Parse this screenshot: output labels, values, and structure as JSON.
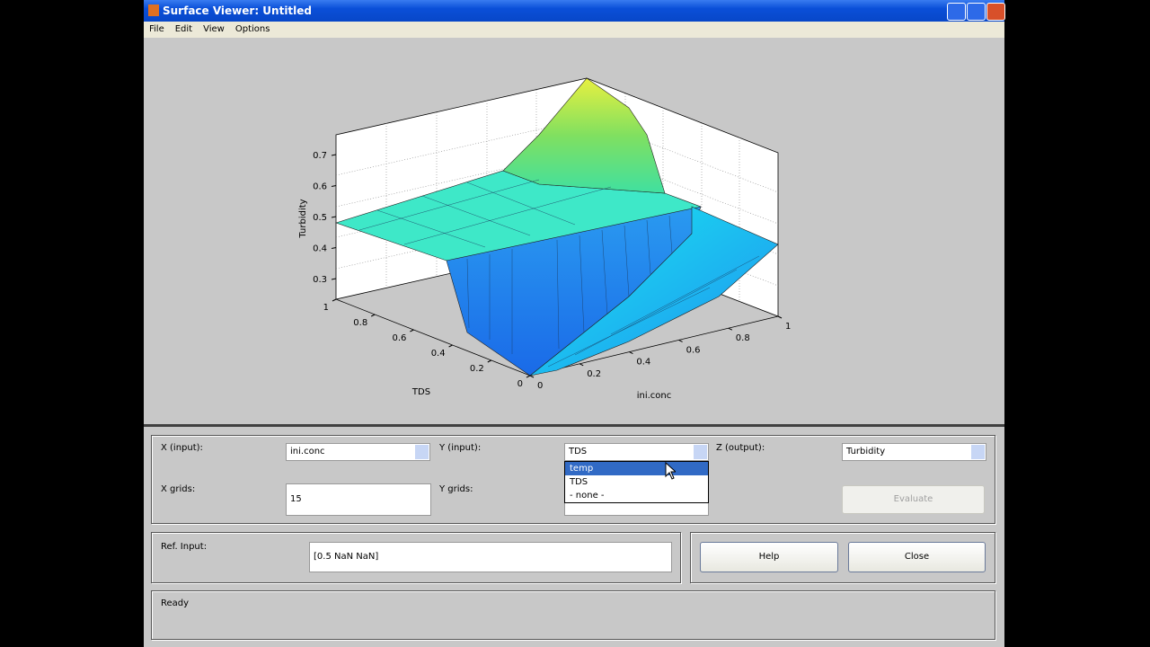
{
  "window": {
    "title": "Surface Viewer: Untitled"
  },
  "menu": [
    "File",
    "Edit",
    "View",
    "Options"
  ],
  "plot": {
    "z_label": "Turbidity",
    "x_label": "ini.conc",
    "y_label": "TDS",
    "z_ticks": [
      0.3,
      0.4,
      0.5,
      0.6,
      0.7
    ],
    "x_ticks": [
      0,
      0.2,
      0.4,
      0.6,
      0.8,
      1
    ],
    "y_ticks": [
      0,
      0.2,
      0.4,
      0.6,
      0.8,
      1
    ]
  },
  "controls": {
    "x_input_label": "X (input):",
    "x_input_value": "ini.conc",
    "y_input_label": "Y (input):",
    "y_input_value": "TDS",
    "z_output_label": "Z (output):",
    "z_output_value": "Turbidity",
    "x_grids_label": "X grids:",
    "x_grids_value": "15",
    "y_grids_label": "Y grids:",
    "y_options": [
      "temp",
      "TDS",
      "- none -"
    ],
    "evaluate": "Evaluate",
    "ref_input_label": "Ref. Input:",
    "ref_input_value": "[0.5 NaN NaN]",
    "help": "Help",
    "close": "Close",
    "status": "Ready"
  }
}
